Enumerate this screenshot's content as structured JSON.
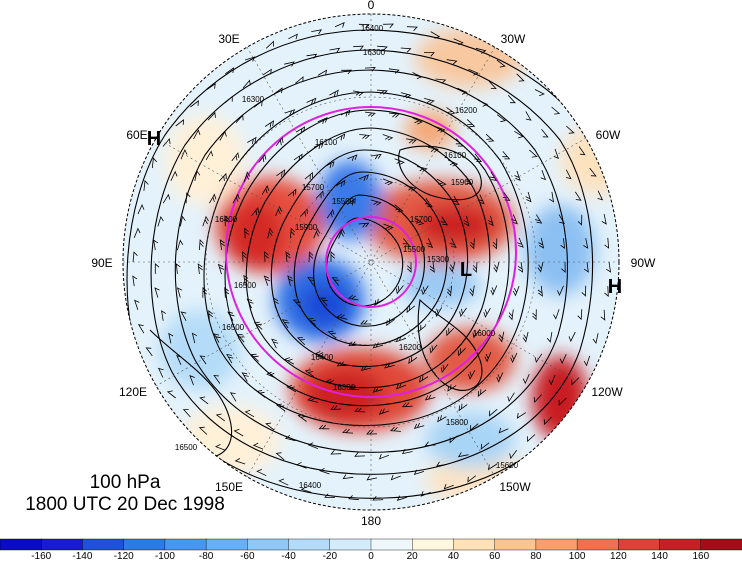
{
  "map": {
    "projection": "north-polar-stereographic",
    "longitude_labels": [
      "0",
      "30W",
      "60W",
      "90W",
      "120W",
      "150W",
      "180",
      "150E",
      "120E",
      "90E",
      "60E",
      "30E"
    ],
    "contour_labels": [
      "16400",
      "16300",
      "16200",
      "16100",
      "15900",
      "15700",
      "15500",
      "15300",
      "15500",
      "15700",
      "15900",
      "16100",
      "16300",
      "16400",
      "16500",
      "16500",
      "16400",
      "16300",
      "16200",
      "16000",
      "15800",
      "15600",
      "16500",
      "16400"
    ],
    "pressure_markers": [
      "H",
      "H",
      "L"
    ],
    "reference_circle_color": "#e020e0",
    "contour_color": "#000000"
  },
  "title": {
    "level": "100 hPa",
    "time": "1800 UTC 20 Dec 1998"
  },
  "colorbar": {
    "tick_labels": [
      "-160",
      "-140",
      "-120",
      "-100",
      "-80",
      "-60",
      "-40",
      "-20",
      "0",
      "20",
      "40",
      "60",
      "80",
      "100",
      "120",
      "140",
      "160"
    ],
    "colors": [
      "#1a1ad6",
      "#2050e0",
      "#2f78ea",
      "#4a96ef",
      "#68b0f3",
      "#8fc8f6",
      "#b4dcf8",
      "#d4ecfa",
      "#eef8fc",
      "#fff6e0",
      "#fde2b8",
      "#fac590",
      "#f6a070",
      "#f07050",
      "#e04038",
      "#c81e24",
      "#a80a18"
    ],
    "units_min": -180,
    "units_max": 180
  }
}
